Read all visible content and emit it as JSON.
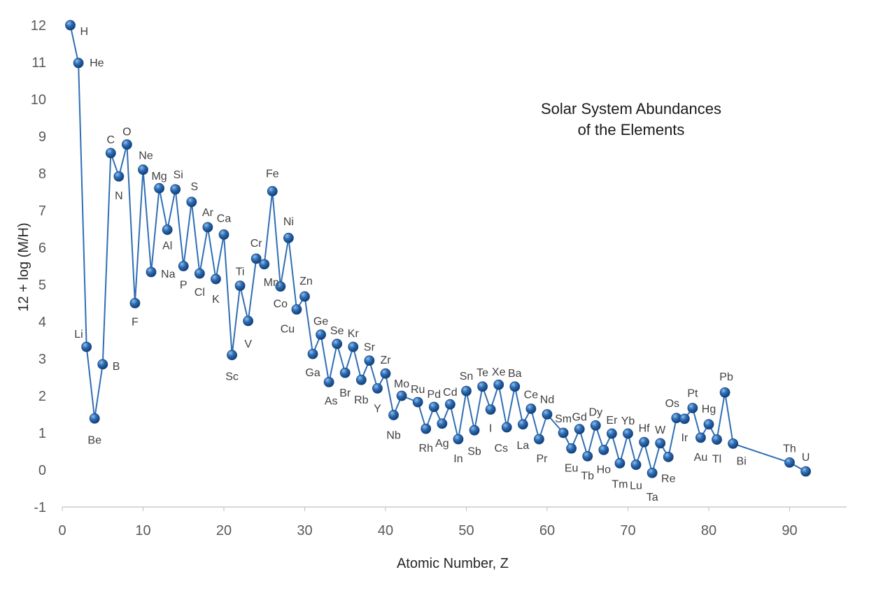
{
  "chart_data": {
    "type": "line",
    "title": [
      "Solar System Abundances",
      "of the Elements"
    ],
    "xlabel": "Atomic Number, Z",
    "ylabel": "12 + log (M/H)",
    "xlim": [
      0,
      97
    ],
    "ylim": [
      -1,
      12
    ],
    "xticks": [
      0,
      10,
      20,
      30,
      40,
      50,
      60,
      70,
      80,
      90
    ],
    "yticks": [
      -1,
      0,
      1,
      2,
      3,
      4,
      5,
      6,
      7,
      8,
      9,
      10,
      11,
      12
    ],
    "grid": false,
    "legend": "none",
    "colors": {
      "line": "#2f6eb5",
      "marker": "#1f5fa8",
      "marker_highlight": "#7fb2e8",
      "axis": "#bfbfbf"
    },
    "series": [
      {
        "name": "Abundance",
        "points": [
          {
            "z": 1,
            "y": 12.0,
            "el": "H"
          },
          {
            "z": 2,
            "y": 10.98,
            "el": "He"
          },
          {
            "z": 3,
            "y": 3.32,
            "el": "Li"
          },
          {
            "z": 4,
            "y": 1.39,
            "el": "Be"
          },
          {
            "z": 5,
            "y": 2.85,
            "el": "B"
          },
          {
            "z": 6,
            "y": 8.55,
            "el": "C"
          },
          {
            "z": 7,
            "y": 7.92,
            "el": "N"
          },
          {
            "z": 8,
            "y": 8.78,
            "el": "O"
          },
          {
            "z": 9,
            "y": 4.5,
            "el": "F"
          },
          {
            "z": 10,
            "y": 8.1,
            "el": "Ne"
          },
          {
            "z": 11,
            "y": 5.34,
            "el": "Na"
          },
          {
            "z": 12,
            "y": 7.6,
            "el": "Mg"
          },
          {
            "z": 13,
            "y": 6.48,
            "el": "Al"
          },
          {
            "z": 14,
            "y": 7.57,
            "el": "Si"
          },
          {
            "z": 15,
            "y": 5.5,
            "el": "P"
          },
          {
            "z": 16,
            "y": 7.23,
            "el": "S"
          },
          {
            "z": 17,
            "y": 5.3,
            "el": "Cl"
          },
          {
            "z": 18,
            "y": 6.55,
            "el": "Ar"
          },
          {
            "z": 19,
            "y": 5.15,
            "el": "K"
          },
          {
            "z": 20,
            "y": 6.35,
            "el": "Ca"
          },
          {
            "z": 21,
            "y": 3.1,
            "el": "Sc"
          },
          {
            "z": 22,
            "y": 4.97,
            "el": "Ti"
          },
          {
            "z": 23,
            "y": 4.02,
            "el": "V"
          },
          {
            "z": 24,
            "y": 5.7,
            "el": "Cr"
          },
          {
            "z": 25,
            "y": 5.55,
            "el": "Mn"
          },
          {
            "z": 26,
            "y": 7.52,
            "el": "Fe"
          },
          {
            "z": 27,
            "y": 4.95,
            "el": "Co"
          },
          {
            "z": 28,
            "y": 6.26,
            "el": "Ni"
          },
          {
            "z": 29,
            "y": 4.33,
            "el": "Cu"
          },
          {
            "z": 30,
            "y": 4.68,
            "el": "Zn"
          },
          {
            "z": 31,
            "y": 3.13,
            "el": "Ga"
          },
          {
            "z": 32,
            "y": 3.65,
            "el": "Ge"
          },
          {
            "z": 33,
            "y": 2.37,
            "el": "As"
          },
          {
            "z": 34,
            "y": 3.4,
            "el": "Se"
          },
          {
            "z": 35,
            "y": 2.62,
            "el": "Br"
          },
          {
            "z": 36,
            "y": 3.32,
            "el": "Kr"
          },
          {
            "z": 37,
            "y": 2.43,
            "el": "Rb"
          },
          {
            "z": 38,
            "y": 2.95,
            "el": "Sr"
          },
          {
            "z": 39,
            "y": 2.2,
            "el": "Y"
          },
          {
            "z": 40,
            "y": 2.6,
            "el": "Zr"
          },
          {
            "z": 41,
            "y": 1.48,
            "el": "Nb"
          },
          {
            "z": 42,
            "y": 2.0,
            "el": "Mo"
          },
          {
            "z": 44,
            "y": 1.83,
            "el": "Ru"
          },
          {
            "z": 45,
            "y": 1.11,
            "el": "Rh"
          },
          {
            "z": 46,
            "y": 1.7,
            "el": "Pd"
          },
          {
            "z": 47,
            "y": 1.25,
            "el": "Ag"
          },
          {
            "z": 48,
            "y": 1.77,
            "el": "Cd"
          },
          {
            "z": 49,
            "y": 0.83,
            "el": "In"
          },
          {
            "z": 50,
            "y": 2.13,
            "el": "Sn"
          },
          {
            "z": 51,
            "y": 1.07,
            "el": "Sb"
          },
          {
            "z": 52,
            "y": 2.25,
            "el": "Te"
          },
          {
            "z": 53,
            "y": 1.63,
            "el": "I"
          },
          {
            "z": 54,
            "y": 2.3,
            "el": "Xe"
          },
          {
            "z": 55,
            "y": 1.15,
            "el": "Cs"
          },
          {
            "z": 56,
            "y": 2.25,
            "el": "Ba"
          },
          {
            "z": 57,
            "y": 1.23,
            "el": "La"
          },
          {
            "z": 58,
            "y": 1.65,
            "el": "Ce"
          },
          {
            "z": 59,
            "y": 0.83,
            "el": "Pr"
          },
          {
            "z": 60,
            "y": 1.5,
            "el": "Nd"
          },
          {
            "z": 62,
            "y": 1.0,
            "el": "Sm"
          },
          {
            "z": 63,
            "y": 0.58,
            "el": "Eu"
          },
          {
            "z": 64,
            "y": 1.1,
            "el": "Gd"
          },
          {
            "z": 65,
            "y": 0.37,
            "el": "Tb"
          },
          {
            "z": 66,
            "y": 1.2,
            "el": "Dy"
          },
          {
            "z": 67,
            "y": 0.54,
            "el": "Ho"
          },
          {
            "z": 68,
            "y": 0.98,
            "el": "Er"
          },
          {
            "z": 69,
            "y": 0.18,
            "el": "Tm"
          },
          {
            "z": 70,
            "y": 0.98,
            "el": "Yb"
          },
          {
            "z": 71,
            "y": 0.14,
            "el": "Lu"
          },
          {
            "z": 72,
            "y": 0.75,
            "el": "Hf"
          },
          {
            "z": 73,
            "y": -0.08,
            "el": "Ta"
          },
          {
            "z": 74,
            "y": 0.72,
            "el": "W"
          },
          {
            "z": 75,
            "y": 0.35,
            "el": "Re"
          },
          {
            "z": 76,
            "y": 1.4,
            "el": "Os"
          },
          {
            "z": 77,
            "y": 1.38,
            "el": "Ir"
          },
          {
            "z": 78,
            "y": 1.67,
            "el": "Pt"
          },
          {
            "z": 79,
            "y": 0.87,
            "el": "Au"
          },
          {
            "z": 80,
            "y": 1.23,
            "el": "Hg"
          },
          {
            "z": 81,
            "y": 0.82,
            "el": "Tl"
          },
          {
            "z": 82,
            "y": 2.09,
            "el": "Pb"
          },
          {
            "z": 83,
            "y": 0.71,
            "el": "Bi"
          },
          {
            "z": 90,
            "y": 0.2,
            "el": "Th"
          },
          {
            "z": 92,
            "y": -0.04,
            "el": "U"
          }
        ]
      }
    ]
  }
}
